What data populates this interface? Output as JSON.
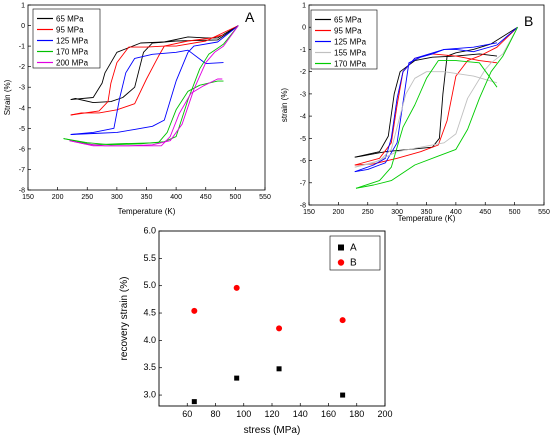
{
  "chart_data": [
    {
      "type": "line",
      "panel_label": "A",
      "xlabel": "Temperature (K)",
      "ylabel": "Strain (%)",
      "xlim": [
        150,
        550
      ],
      "ylim": [
        -8,
        1
      ],
      "xticks": [
        "150",
        "200",
        "250",
        "300",
        "350",
        "400",
        "450",
        "500",
        "550"
      ],
      "yticks": [
        "-8",
        "-7",
        "-6",
        "-5",
        "-4",
        "-3",
        "-2",
        "-1",
        "0",
        "1"
      ],
      "legend": "top-left",
      "series": [
        {
          "name": "65 MPa",
          "color": "#000000",
          "cooling": [
            [
              505,
              0
            ],
            [
              470,
              -0.7
            ],
            [
              400,
              -0.75
            ],
            [
              360,
              -0.85
            ],
            [
              345,
              -1.3
            ],
            [
              330,
              -3.0
            ],
            [
              310,
              -3.5
            ],
            [
              290,
              -3.7
            ],
            [
              260,
              -3.75
            ],
            [
              230,
              -3.55
            ],
            [
              222,
              -3.6
            ]
          ],
          "heating": [
            [
              222,
              -3.6
            ],
            [
              260,
              -3.5
            ],
            [
              275,
              -2.8
            ],
            [
              280,
              -2.3
            ],
            [
              300,
              -1.3
            ],
            [
              340,
              -0.85
            ],
            [
              380,
              -0.8
            ],
            [
              420,
              -0.55
            ],
            [
              450,
              -0.6
            ],
            [
              470,
              -0.6
            ],
            [
              505,
              0
            ]
          ]
        },
        {
          "name": "95 MPa",
          "color": "#ff0000",
          "cooling": [
            [
              505,
              0
            ],
            [
              450,
              -0.75
            ],
            [
              400,
              -1.0
            ],
            [
              380,
              -1.0
            ],
            [
              370,
              -1.5
            ],
            [
              350,
              -2.6
            ],
            [
              330,
              -3.8
            ],
            [
              300,
              -4.1
            ],
            [
              270,
              -4.25
            ],
            [
              240,
              -4.25
            ],
            [
              222,
              -4.35
            ]
          ],
          "heating": [
            [
              222,
              -4.35
            ],
            [
              270,
              -4.15
            ],
            [
              285,
              -3.7
            ],
            [
              290,
              -2.8
            ],
            [
              300,
              -1.8
            ],
            [
              320,
              -1.05
            ],
            [
              350,
              -1.05
            ],
            [
              380,
              -1.0
            ],
            [
              420,
              -0.75
            ],
            [
              460,
              -0.6
            ],
            [
              480,
              -0.45
            ]
          ]
        },
        {
          "name": "125 MPa",
          "color": "#0000ff",
          "cooling": [
            [
              505,
              0
            ],
            [
              470,
              -0.8
            ],
            [
              430,
              -1.0
            ],
            [
              420,
              -1.3
            ],
            [
              400,
              -2.7
            ],
            [
              380,
              -4.6
            ],
            [
              360,
              -4.9
            ],
            [
              330,
              -5.05
            ],
            [
              300,
              -5.2
            ],
            [
              260,
              -5.25
            ],
            [
              222,
              -5.3
            ]
          ],
          "heating": [
            [
              222,
              -5.3
            ],
            [
              260,
              -5.2
            ],
            [
              295,
              -5.0
            ],
            [
              305,
              -3.5
            ],
            [
              315,
              -2.3
            ],
            [
              330,
              -1.6
            ],
            [
              360,
              -1.4
            ],
            [
              400,
              -1.3
            ],
            [
              420,
              -1.2
            ],
            [
              450,
              -1.85
            ],
            [
              480,
              -1.8
            ]
          ]
        },
        {
          "name": "170 MPa",
          "color": "#00c000",
          "cooling": [
            [
              505,
              0
            ],
            [
              480,
              -0.9
            ],
            [
              470,
              -1.1
            ],
            [
              455,
              -1.4
            ],
            [
              440,
              -2.1
            ],
            [
              420,
              -3.6
            ],
            [
              400,
              -5.4
            ],
            [
              380,
              -5.65
            ],
            [
              340,
              -5.75
            ],
            [
              290,
              -5.8
            ],
            [
              250,
              -5.7
            ],
            [
              210,
              -5.5
            ]
          ],
          "heating": [
            [
              210,
              -5.5
            ],
            [
              260,
              -5.8
            ],
            [
              300,
              -5.75
            ],
            [
              370,
              -5.7
            ],
            [
              385,
              -5.2
            ],
            [
              400,
              -4.1
            ],
            [
              420,
              -3.2
            ],
            [
              440,
              -2.9
            ],
            [
              470,
              -2.7
            ],
            [
              480,
              -2.7
            ]
          ]
        },
        {
          "name": "200 MPa",
          "color": "#e000e0",
          "cooling": [
            [
              505,
              0
            ],
            [
              480,
              -1.0
            ],
            [
              465,
              -1.3
            ],
            [
              450,
              -1.8
            ],
            [
              430,
              -3.1
            ],
            [
              410,
              -4.8
            ],
            [
              390,
              -5.6
            ],
            [
              360,
              -5.8
            ],
            [
              320,
              -5.85
            ],
            [
              280,
              -5.85
            ],
            [
              245,
              -5.75
            ],
            [
              220,
              -5.6
            ]
          ],
          "heating": [
            [
              220,
              -5.6
            ],
            [
              260,
              -5.85
            ],
            [
              310,
              -5.85
            ],
            [
              375,
              -5.85
            ],
            [
              390,
              -5.4
            ],
            [
              405,
              -4.3
            ],
            [
              425,
              -3.3
            ],
            [
              445,
              -2.95
            ],
            [
              470,
              -2.6
            ],
            [
              478,
              -2.6
            ]
          ]
        }
      ]
    },
    {
      "type": "line",
      "panel_label": "B",
      "xlabel": "Temperature (K)",
      "ylabel": "strain (%)",
      "xlim": [
        150,
        550
      ],
      "ylim": [
        -8,
        1
      ],
      "xticks": [
        "150",
        "200",
        "250",
        "300",
        "350",
        "400",
        "450",
        "500",
        "550"
      ],
      "yticks": [
        "-8",
        "-7",
        "-6",
        "-5",
        "-4",
        "-3",
        "-2",
        "-1",
        "0",
        "1"
      ],
      "legend": "top-left",
      "series": [
        {
          "name": "65 MPa",
          "color": "#000000",
          "cooling": [
            [
              505,
              0
            ],
            [
              460,
              -0.75
            ],
            [
              430,
              -1.0
            ],
            [
              400,
              -1.15
            ],
            [
              385,
              -1.3
            ],
            [
              378,
              -3.0
            ],
            [
              372,
              -5.0
            ],
            [
              360,
              -5.4
            ],
            [
              320,
              -5.5
            ],
            [
              280,
              -5.6
            ],
            [
              240,
              -5.8
            ],
            [
              228,
              -5.85
            ]
          ],
          "heating": [
            [
              228,
              -5.85
            ],
            [
              270,
              -5.6
            ],
            [
              285,
              -4.9
            ],
            [
              295,
              -3.0
            ],
            [
              305,
              -2.0
            ],
            [
              330,
              -1.5
            ],
            [
              360,
              -1.35
            ],
            [
              400,
              -1.3
            ],
            [
              440,
              -1.2
            ],
            [
              470,
              -1.3
            ]
          ]
        },
        {
          "name": "95 MPa",
          "color": "#ff0000",
          "cooling": [
            [
              505,
              0
            ],
            [
              470,
              -0.9
            ],
            [
              440,
              -1.3
            ],
            [
              420,
              -1.5
            ],
            [
              400,
              -2.2
            ],
            [
              385,
              -4.2
            ],
            [
              370,
              -5.3
            ],
            [
              340,
              -5.6
            ],
            [
              300,
              -5.9
            ],
            [
              260,
              -6.15
            ],
            [
              228,
              -6.2
            ]
          ],
          "heating": [
            [
              228,
              -6.2
            ],
            [
              270,
              -5.9
            ],
            [
              290,
              -5.2
            ],
            [
              300,
              -3.5
            ],
            [
              310,
              -2.0
            ],
            [
              330,
              -1.4
            ],
            [
              360,
              -1.2
            ],
            [
              400,
              -1.3
            ],
            [
              440,
              -1.5
            ],
            [
              470,
              -1.6
            ]
          ]
        },
        {
          "name": "125 MPa",
          "color": "#0000ff",
          "cooling": [
            [
              505,
              0
            ],
            [
              470,
              -0.8
            ],
            [
              430,
              -1.1
            ],
            [
              400,
              -1.0
            ],
            [
              380,
              -1.0
            ],
            [
              360,
              -1.2
            ],
            [
              340,
              -1.35
            ],
            [
              320,
              -1.6
            ],
            [
              300,
              -5.2
            ],
            [
              280,
              -6.1
            ],
            [
              250,
              -6.4
            ],
            [
              228,
              -6.5
            ]
          ],
          "heating": [
            [
              228,
              -6.5
            ],
            [
              260,
              -6.2
            ],
            [
              280,
              -5.9
            ],
            [
              290,
              -5.0
            ],
            [
              300,
              -3.2
            ],
            [
              310,
              -2.0
            ],
            [
              330,
              -1.4
            ],
            [
              380,
              -1.0
            ],
            [
              430,
              -0.9
            ],
            [
              470,
              -0.7
            ]
          ]
        },
        {
          "name": "155 MPa",
          "color": "#c0c0c0",
          "cooling": [
            [
              505,
              0
            ],
            [
              480,
              -1.2
            ],
            [
              460,
              -1.6
            ],
            [
              450,
              -1.9
            ],
            [
              420,
              -3.2
            ],
            [
              400,
              -4.8
            ],
            [
              380,
              -5.2
            ],
            [
              350,
              -5.35
            ],
            [
              300,
              -5.6
            ],
            [
              260,
              -6.1
            ],
            [
              228,
              -6.3
            ]
          ],
          "heating": [
            [
              228,
              -6.3
            ],
            [
              270,
              -6.0
            ],
            [
              290,
              -5.5
            ],
            [
              300,
              -4.5
            ],
            [
              315,
              -3.0
            ],
            [
              330,
              -2.3
            ],
            [
              350,
              -2.0
            ],
            [
              380,
              -2.0
            ],
            [
              430,
              -2.2
            ],
            [
              470,
              -2.5
            ]
          ]
        },
        {
          "name": "170 MPa",
          "color": "#00cc00",
          "cooling": [
            [
              505,
              0
            ],
            [
              480,
              -1.3
            ],
            [
              460,
              -2.0
            ],
            [
              440,
              -3.2
            ],
            [
              420,
              -4.6
            ],
            [
              400,
              -5.5
            ],
            [
              370,
              -5.8
            ],
            [
              330,
              -6.2
            ],
            [
              290,
              -6.9
            ],
            [
              260,
              -7.1
            ],
            [
              230,
              -7.25
            ]
          ],
          "heating": [
            [
              230,
              -7.25
            ],
            [
              270,
              -6.9
            ],
            [
              290,
              -6.3
            ],
            [
              300,
              -5.4
            ],
            [
              310,
              -4.5
            ],
            [
              330,
              -3.5
            ],
            [
              350,
              -2.3
            ],
            [
              370,
              -1.5
            ],
            [
              400,
              -1.5
            ],
            [
              440,
              -1.6
            ],
            [
              470,
              -2.7
            ]
          ]
        }
      ]
    },
    {
      "type": "scatter",
      "xlabel": "stress (MPa)",
      "ylabel": "recovery strain (%)",
      "xlim": [
        40,
        200
      ],
      "ylim": [
        2.8,
        6.0
      ],
      "xticks": [
        "60",
        "80",
        "100",
        "120",
        "140",
        "160",
        "180",
        "200"
      ],
      "yticks": [
        "3.0",
        "3.5",
        "4.0",
        "4.5",
        "5.0",
        "5.5",
        "6.0"
      ],
      "legend": "top-right",
      "series": [
        {
          "name": "A",
          "color": "#000000",
          "marker": "square",
          "x": [
            65,
            95,
            125,
            170
          ],
          "y": [
            2.88,
            3.31,
            3.48,
            3.0
          ]
        },
        {
          "name": "B",
          "color": "#ff0000",
          "marker": "circle",
          "x": [
            65,
            95,
            125,
            170
          ],
          "y": [
            4.54,
            4.96,
            4.22,
            4.37
          ]
        }
      ]
    }
  ]
}
